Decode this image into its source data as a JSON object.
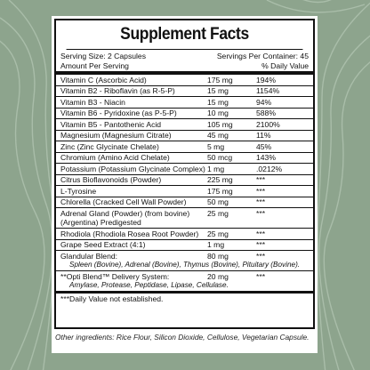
{
  "title": "Supplement Facts",
  "serving_size": "Serving Size: 2 Capsules",
  "servings_per_container": "Servings Per Container: 45",
  "amount_per_serving": "Amount Per Serving",
  "daily_value_header": "% Daily Value",
  "rows": [
    {
      "name": "Vitamin C (Ascorbic Acid)",
      "amount": "175 mg",
      "dv": "194%"
    },
    {
      "name": "Vitamin B2 - Riboflavin (as R-5-P)",
      "amount": "15 mg",
      "dv": "1154%"
    },
    {
      "name": "Vitamin B3 - Niacin",
      "amount": "15 mg",
      "dv": "94%"
    },
    {
      "name": "Vitamin B6 - Pyridoxine (as P-5-P)",
      "amount": "10 mg",
      "dv": "588%"
    },
    {
      "name": "Vitamin B5 - Pantothenic Acid",
      "amount": "105 mg",
      "dv": "2100%"
    },
    {
      "name": "Magnesium (Magnesium Citrate)",
      "amount": "45 mg",
      "dv": "11%"
    },
    {
      "name": "Zinc (Zinc Glycinate Chelate)",
      "amount": "5 mg",
      "dv": "45%"
    },
    {
      "name": "Chromium (Amino Acid Chelate)",
      "amount": "50 mcg",
      "dv": "143%"
    },
    {
      "name": "Potassium (Potassium Glycinate Complex)",
      "amount": "1 mg",
      "dv": ".0212%"
    },
    {
      "name": "Citrus Bioflavonoids (Powder)",
      "amount": "225 mg",
      "dv": "***"
    },
    {
      "name": "L-Tyrosine",
      "amount": "175 mg",
      "dv": "***"
    },
    {
      "name": "Chlorella (Cracked Cell Wall Powder)",
      "amount": "50 mg",
      "dv": "***"
    },
    {
      "name": "Adrenal Gland (Powder) (from bovine) (Argentina) Predigested",
      "amount": "25 mg",
      "dv": "***"
    },
    {
      "name": "Rhodiola (Rhodiola Rosea Root Powder)",
      "amount": "25 mg",
      "dv": "***"
    },
    {
      "name": "Grape Seed Extract (4:1)",
      "amount": "1 mg",
      "dv": "***"
    }
  ],
  "glandular": {
    "name": "Glandular Blend:",
    "amount": "80 mg",
    "dv": "***",
    "detail": "Spleen (Bovine), Adrenal (Bovine), Thymus (Bovine), Pituitary (Bovine)."
  },
  "optiblend": {
    "name": "**Opti Blend™ Delivery System:",
    "amount": "20 mg",
    "dv": "***",
    "detail": "Amylase, Protease, Peptidase, Lipase, Cellulase."
  },
  "footnote": "***Daily Value not established.",
  "other_ingredients": "Other ingredients: Rice Flour, Silicon Dioxide, Cellulose, Vegetarian Capsule."
}
